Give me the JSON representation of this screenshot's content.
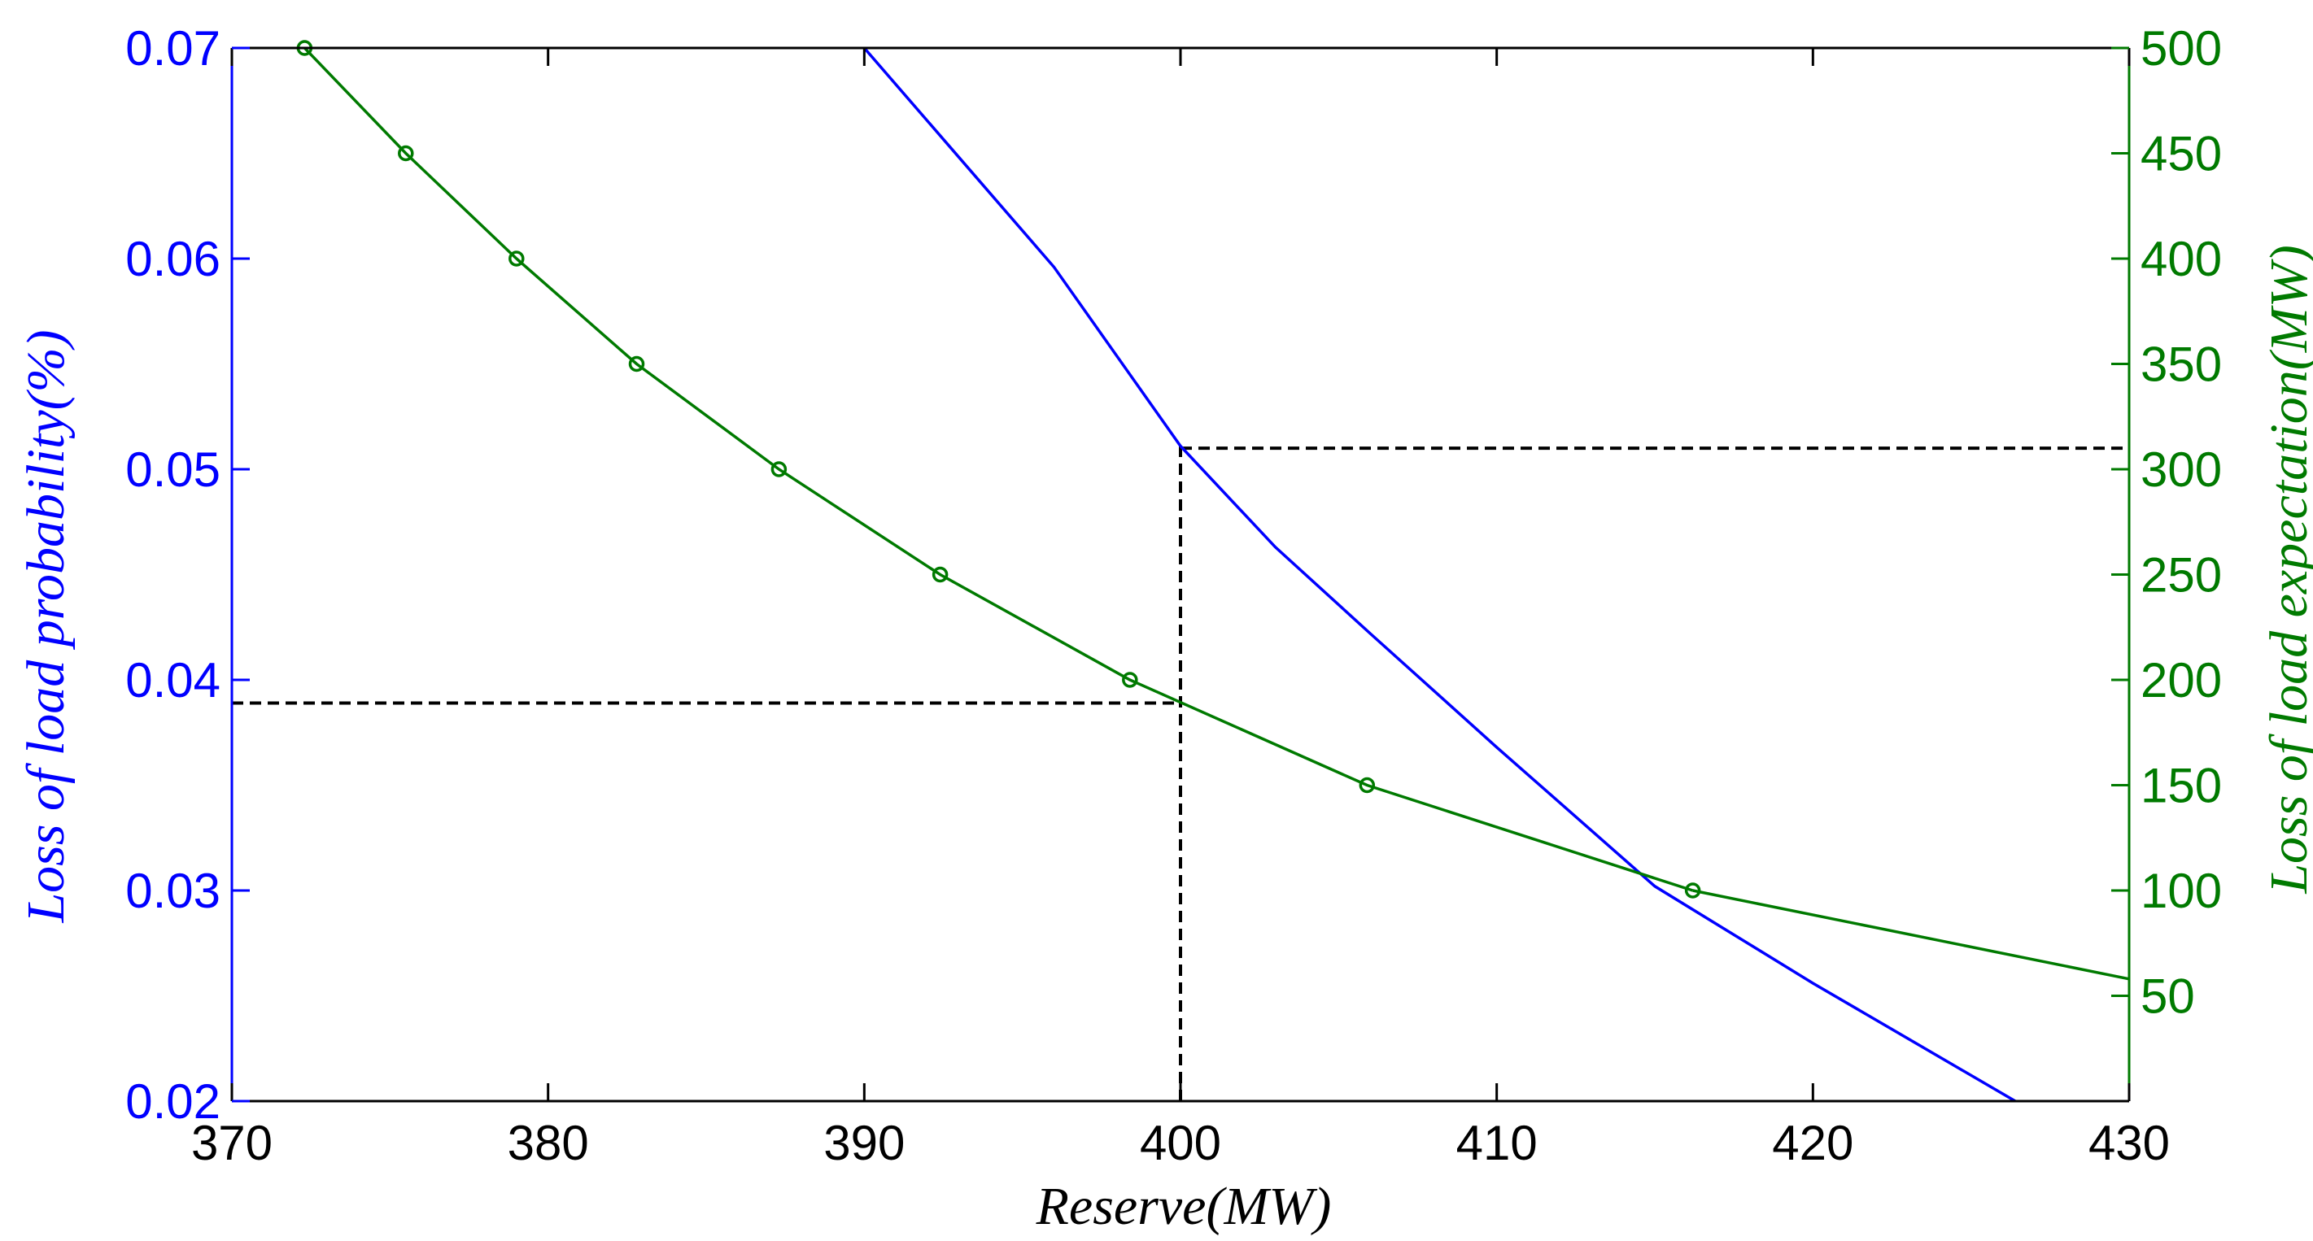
{
  "chart_data": {
    "type": "line",
    "xlabel": "Reserve(MW)",
    "ylabel_left": "Loss of load probability(%)",
    "ylabel_right": "Loss of load expectation(MW)",
    "xlim": [
      370,
      430
    ],
    "ylim_left": [
      0.02,
      0.07
    ],
    "ylim_right": [
      0,
      500
    ],
    "x_ticks": [
      370,
      380,
      390,
      400,
      410,
      420,
      430
    ],
    "y_left_ticks": [
      "0.02",
      "0.03",
      "0.04",
      "0.05",
      "0.06",
      "0.07"
    ],
    "y_right_ticks": [
      50,
      100,
      150,
      200,
      250,
      300,
      350,
      400,
      450,
      500
    ],
    "grid": false,
    "colors": {
      "left_axis": "#0000ff",
      "right_axis": "#007a00",
      "guides": "#000000"
    },
    "series": [
      {
        "axis": "left",
        "color": "#0000ff",
        "marker": "none",
        "x": [
          390,
          393,
          396,
          400,
          403,
          406,
          410,
          415,
          420,
          426.4
        ],
        "y": [
          0.07,
          0.0648,
          0.0596,
          0.0511,
          0.0463,
          0.0422,
          0.0368,
          0.0302,
          0.0256,
          0.02
        ]
      },
      {
        "axis": "right",
        "color": "#007a00",
        "marker": "circle",
        "x": [
          372.3,
          375.5,
          379.0,
          382.8,
          387.3,
          392.4,
          398.4,
          405.9,
          416.2
        ],
        "y": [
          500,
          450,
          400,
          350,
          300,
          250,
          200,
          150,
          100
        ]
      },
      {
        "axis": "right",
        "color": "#007a00",
        "marker": "none",
        "x": [
          416.2,
          430
        ],
        "y": [
          100,
          58
        ]
      }
    ],
    "guides": [
      {
        "axis": "left",
        "x": [
          370,
          400
        ],
        "y": [
          0.0389,
          0.0389
        ]
      },
      {
        "axis": "left",
        "x": [
          400,
          400
        ],
        "y": [
          0.02,
          0.0511
        ]
      },
      {
        "axis": "right",
        "x": [
          400,
          430
        ],
        "y": [
          310,
          310
        ]
      }
    ]
  }
}
